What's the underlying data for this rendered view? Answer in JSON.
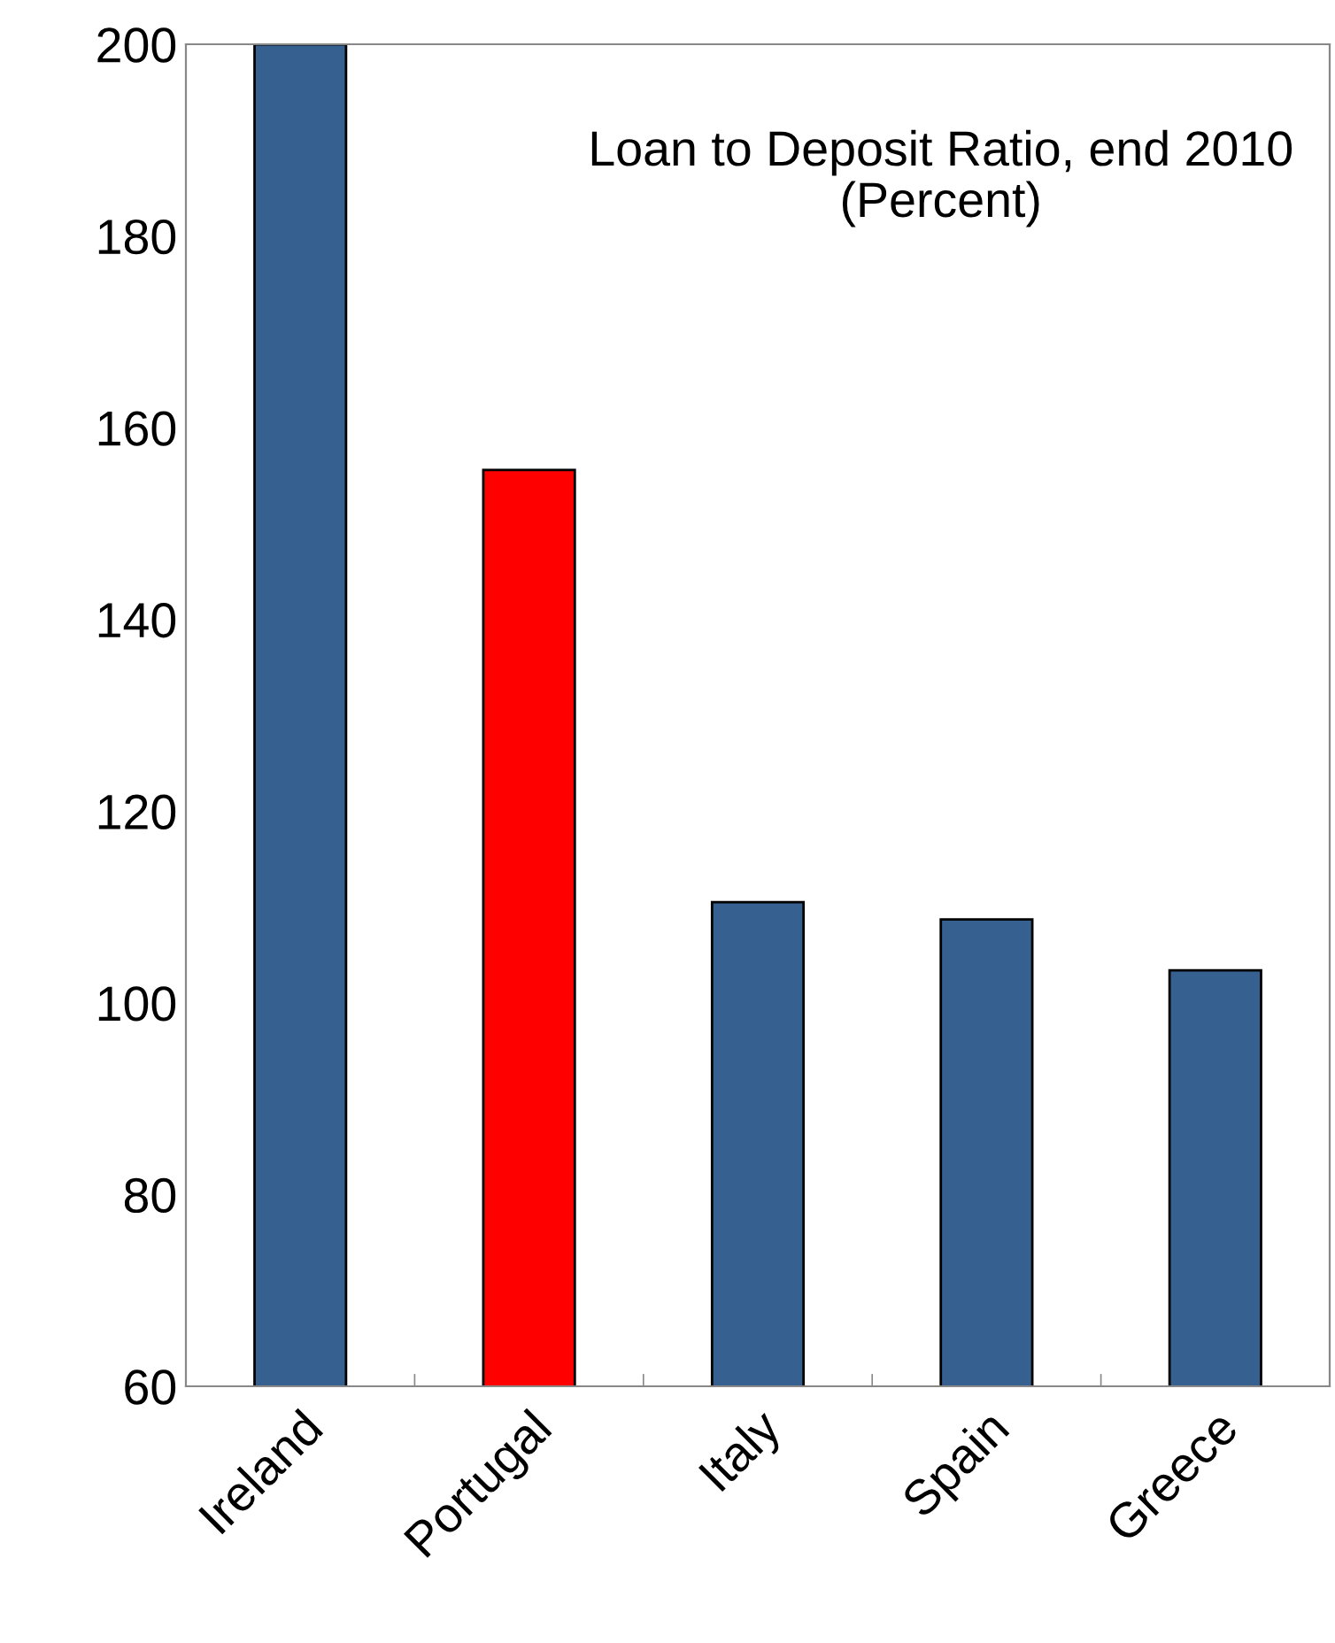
{
  "chart_data": {
    "type": "bar",
    "title": "Loan to Deposit Ratio, end 2010\n(Percent)",
    "categories": [
      "Ireland",
      "Portugal",
      "Italy",
      "Spain",
      "Greece"
    ],
    "values": [
      200,
      155.6,
      110.5,
      108.7,
      103.4
    ],
    "colors": [
      "#35608f",
      "#ff0000",
      "#35608f",
      "#35608f",
      "#35608f"
    ],
    "ylim": [
      60,
      200
    ],
    "yticks": [
      60,
      80,
      100,
      120,
      140,
      160,
      180,
      200
    ],
    "grid": false
  }
}
